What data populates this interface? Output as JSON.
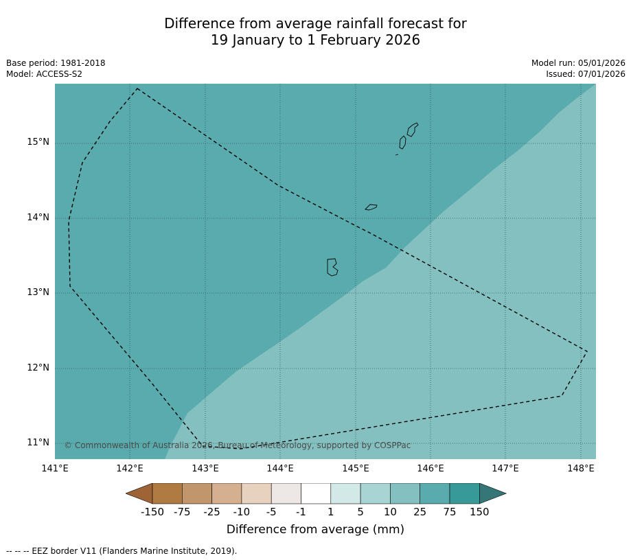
{
  "title": {
    "line1": "Difference from average rainfall forecast for",
    "line2": "19 January to 1 February 2026"
  },
  "meta_left": {
    "base_period": "Base period: 1981-2018",
    "model": "Model: ACCESS-S2"
  },
  "meta_right": {
    "model_run": "Model run: 05/01/2026",
    "issued": "Issued: 07/01/2026"
  },
  "map": {
    "lat_labels": [
      "15°N",
      "14°N",
      "13°N",
      "12°N",
      "11°N"
    ],
    "lon_labels": [
      "141°E",
      "142°E",
      "143°E",
      "144°E",
      "145°E",
      "146°E",
      "147°E",
      "148°E"
    ],
    "copyright": "© Commonwealth of Australia 2026, Bureau of Meteorology, supported by COSPPac",
    "region_colors": {
      "75_to_150": "#5aabad",
      "25_to_75": "#84c0bf"
    },
    "islands": [
      "Guam",
      "Rota",
      "Tinian",
      "Saipan"
    ]
  },
  "colorbar": {
    "ticks": [
      "-150",
      "-75",
      "-25",
      "-10",
      "-5",
      "-1",
      "1",
      "5",
      "10",
      "25",
      "75",
      "150"
    ],
    "colors": [
      "#9e6436",
      "#b07a43",
      "#c2966d",
      "#d4b091",
      "#e7d1bf",
      "#ede8e5",
      "#ffffff",
      "#d3e9e8",
      "#a9d4d4",
      "#84c0bf",
      "#5aabad",
      "#389a98",
      "#357778"
    ],
    "label": "Difference from average (mm)"
  },
  "legend_note": "--  --  -- EEZ border V11 (Flanders Marine Institute, 2019)."
}
